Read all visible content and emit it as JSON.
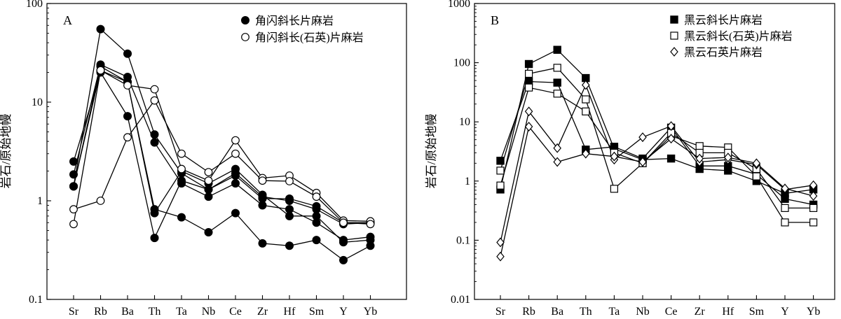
{
  "chart_data": [
    {
      "type": "line",
      "panel_label": "A",
      "ylabel": "岩石/原始地幔",
      "yscale": "log",
      "ylim": [
        0.1,
        100
      ],
      "y_tick_labels": [
        "0.1",
        "1",
        "10",
        "100"
      ],
      "categories": [
        "Sr",
        "Rb",
        "Ba",
        "Th",
        "Ta",
        "Nb",
        "Ce",
        "Zr",
        "Hf",
        "Sm",
        "Y",
        "Yb"
      ],
      "grid": false,
      "legend_position": "top-right",
      "legend": [
        {
          "label": "角闪斜长片麻岩",
          "marker": "filled-circle"
        },
        {
          "label": "角闪斜长(石英)片麻岩",
          "marker": "open-circle"
        }
      ],
      "series": [
        {
          "marker": "filled-circle",
          "values": [
            1.4,
            55,
            31,
            4.7,
            1.9,
            1.3,
            1.9,
            1.1,
            1.0,
            0.82,
            0.58,
            0.6
          ]
        },
        {
          "marker": "filled-circle",
          "values": [
            1.85,
            24,
            18,
            3.9,
            1.5,
            1.1,
            1.5,
            0.9,
            0.82,
            0.6,
            0.4,
            0.43
          ]
        },
        {
          "marker": "filled-circle",
          "values": [
            2.5,
            20,
            7.2,
            0.42,
            1.6,
            1.3,
            1.8,
            1.05,
            1.05,
            0.88,
            0.6,
            0.6
          ]
        },
        {
          "marker": "filled-circle",
          "values": [
            1.4,
            23,
            16,
            0.82,
            0.68,
            0.48,
            0.75,
            0.37,
            0.35,
            0.4,
            0.25,
            0.35
          ]
        },
        {
          "marker": "filled-circle",
          "values": [
            1.4,
            21,
            16,
            0.75,
            2.0,
            1.5,
            2.1,
            1.15,
            0.7,
            0.7,
            0.38,
            0.4
          ]
        },
        {
          "marker": "open-circle",
          "values": [
            0.58,
            21,
            14.8,
            13.5,
            2.1,
            1.6,
            4.1,
            1.7,
            1.8,
            1.2,
            0.63,
            0.62
          ]
        },
        {
          "marker": "open-circle",
          "values": [
            0.82,
            1.0,
            4.4,
            10.4,
            3.0,
            1.95,
            3.0,
            1.6,
            1.58,
            1.1,
            0.6,
            0.58
          ]
        }
      ]
    },
    {
      "type": "line",
      "panel_label": "B",
      "ylabel": "岩石/原始地幔",
      "yscale": "log",
      "ylim": [
        0.01,
        1000
      ],
      "y_tick_labels": [
        "0.01",
        "0.1",
        "1",
        "10",
        "100",
        "1000"
      ],
      "categories": [
        "Sr",
        "Rb",
        "Ba",
        "Th",
        "Ta",
        "Nb",
        "Ce",
        "Zr",
        "Hf",
        "Sm",
        "Y",
        "Yb"
      ],
      "grid": false,
      "legend_position": "top-right",
      "legend": [
        {
          "label": "黑云斜长片麻岩",
          "marker": "filled-square"
        },
        {
          "label": "黑云斜长(石英)片麻岩",
          "marker": "open-square"
        },
        {
          "label": "黑云石英片麻岩",
          "marker": "open-diamond"
        }
      ],
      "series": [
        {
          "marker": "filled-square",
          "values": [
            0.72,
            95,
            165,
            55,
            3.5,
            2.3,
            2.4,
            1.6,
            1.5,
            1.0,
            0.62,
            0.72
          ]
        },
        {
          "marker": "filled-square",
          "values": [
            2.2,
            48,
            46,
            3.4,
            3.8,
            2.4,
            8.0,
            1.8,
            1.8,
            1.3,
            0.5,
            0.4
          ]
        },
        {
          "marker": "open-square",
          "values": [
            1.5,
            65,
            82,
            24,
            0.74,
            2.0,
            5.8,
            3.9,
            3.7,
            1.2,
            0.2,
            0.2
          ]
        },
        {
          "marker": "open-square",
          "values": [
            0.84,
            38,
            30,
            15,
            3.0,
            2.0,
            6.5,
            3.0,
            3.0,
            1.6,
            0.35,
            0.35
          ]
        },
        {
          "marker": "open-diamond",
          "values": [
            0.092,
            15,
            3.6,
            42,
            2.3,
            5.5,
            8.5,
            2.1,
            2.3,
            1.9,
            0.72,
            0.85
          ]
        },
        {
          "marker": "open-diamond",
          "values": [
            0.053,
            8.3,
            2.1,
            2.9,
            2.6,
            2.1,
            5.2,
            2.4,
            2.5,
            2.0,
            0.75,
            0.56
          ]
        }
      ]
    }
  ]
}
